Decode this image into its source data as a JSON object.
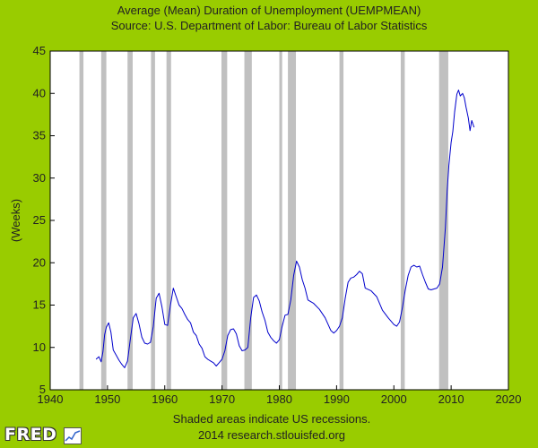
{
  "logo": {
    "text": "FRED"
  },
  "chart_data": {
    "type": "line",
    "title": "Average (Mean) Duration of Unemployment (UEMPMEAN)",
    "subtitle": "Source: U.S. Department of Labor: Bureau of Labor Statistics",
    "ylabel": "(Weeks)",
    "xlabel": "",
    "xlim": [
      1940,
      2020
    ],
    "ylim": [
      5,
      45
    ],
    "x_ticks": [
      1940,
      1950,
      1960,
      1970,
      1980,
      1990,
      2000,
      2010,
      2020
    ],
    "y_ticks": [
      5,
      10,
      15,
      20,
      25,
      30,
      35,
      40,
      45
    ],
    "grid": false,
    "footer_lines": [
      "Shaded areas indicate US recessions.",
      "2014 research.stlouisfed.org"
    ],
    "colors": {
      "line": "#0000cc",
      "recession": "#c0c0c0",
      "plot_bg": "#ffffff",
      "frame_bg": "#99cc00"
    },
    "recessions": [
      [
        1945.1,
        1945.8
      ],
      [
        1948.9,
        1949.8
      ],
      [
        1953.5,
        1954.4
      ],
      [
        1957.6,
        1958.3
      ],
      [
        1960.3,
        1961.1
      ],
      [
        1969.9,
        1970.9
      ],
      [
        1973.9,
        1975.2
      ],
      [
        1980.0,
        1980.5
      ],
      [
        1981.5,
        1982.9
      ],
      [
        1990.5,
        1991.2
      ],
      [
        2001.2,
        2001.9
      ],
      [
        2007.9,
        2009.5
      ]
    ],
    "series": [
      {
        "x": [
          1948.0,
          1948.5,
          1948.9,
          1949.2,
          1949.5,
          1949.8,
          1950.2,
          1950.6,
          1951.0,
          1951.5,
          1952.0,
          1952.5,
          1953.0,
          1953.5,
          1954.0,
          1954.5,
          1955.0,
          1955.5,
          1956.0,
          1956.5,
          1957.0,
          1957.5,
          1958.0,
          1958.5,
          1959.0,
          1959.5,
          1960.0,
          1960.5,
          1961.0,
          1961.5,
          1962.0,
          1962.5,
          1963.0,
          1963.5,
          1964.0,
          1964.5,
          1965.0,
          1965.5,
          1966.0,
          1966.5,
          1967.0,
          1967.5,
          1968.0,
          1968.5,
          1969.0,
          1969.5,
          1970.0,
          1970.5,
          1971.0,
          1971.5,
          1972.0,
          1972.5,
          1973.0,
          1973.5,
          1974.0,
          1974.5,
          1975.0,
          1975.5,
          1976.0,
          1976.5,
          1977.0,
          1977.5,
          1978.0,
          1978.5,
          1979.0,
          1979.5,
          1980.0,
          1980.5,
          1981.0,
          1981.5,
          1982.0,
          1982.5,
          1983.0,
          1983.5,
          1984.0,
          1984.5,
          1985.0,
          1986.0,
          1987.0,
          1988.0,
          1989.0,
          1989.5,
          1990.0,
          1990.5,
          1991.0,
          1991.5,
          1992.0,
          1992.5,
          1993.0,
          1993.5,
          1994.0,
          1994.5,
          1995.0,
          1996.0,
          1997.0,
          1998.0,
          1999.0,
          2000.0,
          2000.5,
          2001.0,
          2001.5,
          2002.0,
          2002.5,
          2003.0,
          2003.5,
          2004.0,
          2004.5,
          2005.0,
          2005.5,
          2006.0,
          2006.5,
          2007.0,
          2007.5,
          2008.0,
          2008.5,
          2009.0,
          2009.3,
          2009.6,
          2010.0,
          2010.3,
          2010.6,
          2011.0,
          2011.3,
          2011.6,
          2012.0,
          2012.3,
          2012.6,
          2013.0,
          2013.3,
          2013.6,
          2014.0
        ],
        "y": [
          8.6,
          8.9,
          8.3,
          9.5,
          11.5,
          12.4,
          12.9,
          11.8,
          9.7,
          9.1,
          8.5,
          8.0,
          7.6,
          8.4,
          11.0,
          13.5,
          14.0,
          12.8,
          11.2,
          10.5,
          10.4,
          10.6,
          12.5,
          15.8,
          16.4,
          14.8,
          12.7,
          12.6,
          15.0,
          17.0,
          16.0,
          15.0,
          14.6,
          13.9,
          13.3,
          12.9,
          11.8,
          11.4,
          10.4,
          9.9,
          8.9,
          8.6,
          8.4,
          8.2,
          7.8,
          8.2,
          8.6,
          9.6,
          11.4,
          12.1,
          12.2,
          11.6,
          10.2,
          9.6,
          9.7,
          10.0,
          13.5,
          15.9,
          16.2,
          15.5,
          14.2,
          13.2,
          11.8,
          11.2,
          10.8,
          10.5,
          10.9,
          12.5,
          13.8,
          13.9,
          15.6,
          18.5,
          20.2,
          19.5,
          18.0,
          17.0,
          15.6,
          15.2,
          14.5,
          13.5,
          12.0,
          11.7,
          12.0,
          12.5,
          13.5,
          15.8,
          17.7,
          18.2,
          18.3,
          18.6,
          19.0,
          18.7,
          17.0,
          16.7,
          16.0,
          14.4,
          13.5,
          12.7,
          12.5,
          13.0,
          14.7,
          16.8,
          18.5,
          19.5,
          19.7,
          19.5,
          19.6,
          18.6,
          17.7,
          16.9,
          16.8,
          16.9,
          17.0,
          17.5,
          19.5,
          24.1,
          28.5,
          31.5,
          34.2,
          35.5,
          37.8,
          39.9,
          40.4,
          39.7,
          40.0,
          39.5,
          38.4,
          37.1,
          35.6,
          36.8,
          36.0
        ]
      }
    ]
  }
}
